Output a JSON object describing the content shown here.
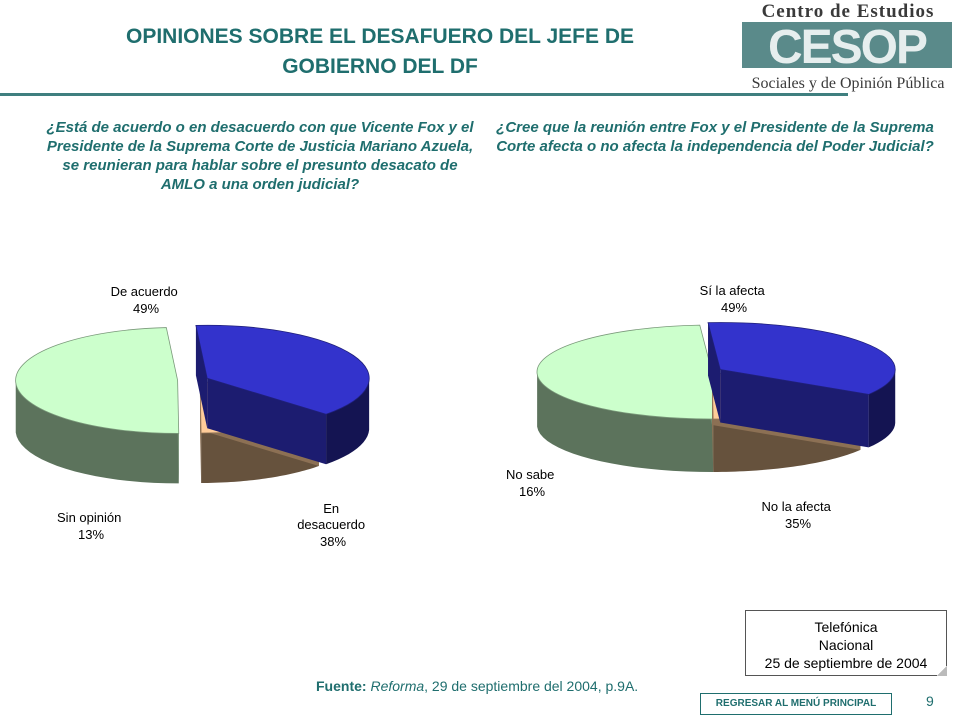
{
  "header": {
    "title_line1": "OPINIONES SOBRE EL DESAFUERO DEL JEFE DE",
    "title_line2": "GOBIERNO DEL DF"
  },
  "logo": {
    "line_top": "Centro de Estudios",
    "mark": "CESOP",
    "line_bottom": "Sociales y de Opinión Pública"
  },
  "chart_data": [
    {
      "type": "pie",
      "title": "¿Está de acuerdo o en desacuerdo con que Vicente Fox y el Presidente de la Suprema Corte de Justicia Mariano Azuela, se reunieran para hablar sobre el presunto desacato de AMLO a una orden judicial?",
      "slices": [
        {
          "label": "De acuerdo",
          "value": 49,
          "value_label": "49%",
          "color": "#ccffcc"
        },
        {
          "label": "En desacuerdo",
          "value": 38,
          "value_label": "38%",
          "color": "#3333cc"
        },
        {
          "label": "Sin opinión",
          "value": 13,
          "value_label": "13%",
          "color": "#ffcc99"
        }
      ]
    },
    {
      "type": "pie",
      "title": "¿Cree que la reunión entre Fox y el Presidente de la Suprema Corte afecta o no afecta la independencia del Poder Judicial?",
      "slices": [
        {
          "label": "Sí la afecta",
          "value": 49,
          "value_label": "49%",
          "color": "#ccffcc"
        },
        {
          "label": "No la afecta",
          "value": 35,
          "value_label": "35%",
          "color": "#3333cc"
        },
        {
          "label": "No sabe",
          "value": 16,
          "value_label": "16%",
          "color": "#ffcc99"
        }
      ]
    }
  ],
  "source": {
    "prefix": "Fuente:",
    "publication": "Reforma",
    "rest": ", 29 de septiembre del 2004, p.9A."
  },
  "note": {
    "line1": "Telefónica",
    "line2": "Nacional",
    "line3": "25 de septiembre de 2004"
  },
  "nav": {
    "back_label": "REGRESAR AL MENÚ PRINCIPAL"
  },
  "page": {
    "number": "9"
  }
}
